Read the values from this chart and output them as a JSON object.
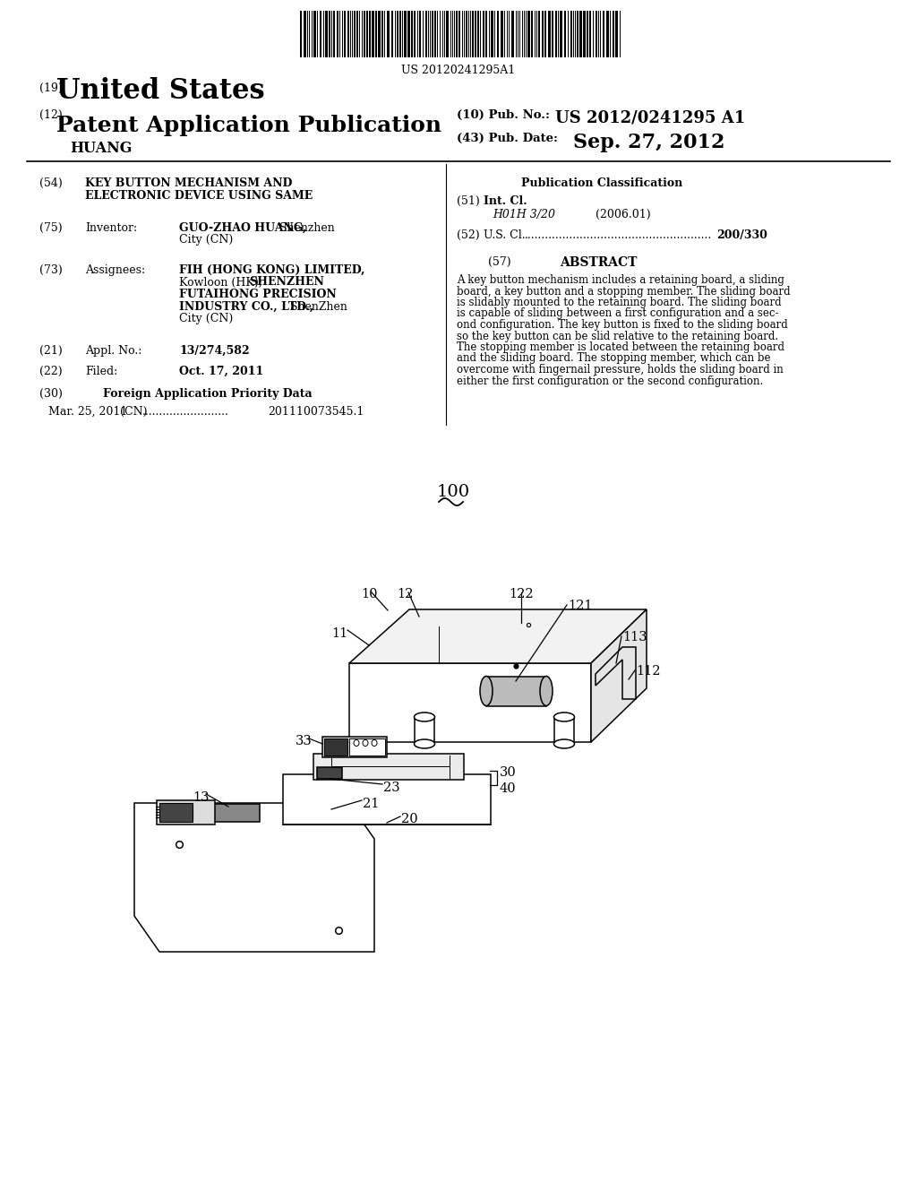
{
  "background_color": "#ffffff",
  "text_color": "#000000",
  "barcode_text": "US 20120241295A1",
  "title_number": "(19)",
  "title_country": "United States",
  "pub_type_number": "(12)",
  "pub_type": "Patent Application Publication",
  "inventor_last": "HUANG",
  "pub_no_label": "(10) Pub. No.:",
  "pub_no": "US 2012/0241295 A1",
  "pub_date_label": "(43) Pub. Date:",
  "pub_date": "Sep. 27, 2012",
  "field54_label": "(54)",
  "field54_line1": "KEY BUTTON MECHANISM AND",
  "field54_line2": "ELECTRONIC DEVICE USING SAME",
  "field75_label": "(75)",
  "field75_title": "Inventor:",
  "field75_bold": "GUO-ZHAO HUANG,",
  "field75_norm": " Shenzhen",
  "field75_line2": "City (CN)",
  "field73_label": "(73)",
  "field73_title": "Assignees:",
  "field73_lines": [
    [
      "FIH (HONG KONG) LIMITED,",
      true
    ],
    [
      "Kowloon (HK); ",
      false
    ],
    [
      "SHENZHEN",
      true
    ],
    [
      "FUTAIHONG PRECISION",
      true
    ],
    [
      "INDUSTRY CO., LTD.,",
      true
    ],
    [
      " ShenZhen",
      false
    ],
    [
      "City (CN)",
      false
    ]
  ],
  "field21_label": "(21)",
  "field21_title": "Appl. No.:",
  "field21_value": "13/274,582",
  "field22_label": "(22)",
  "field22_title": "Filed:",
  "field22_value": "Oct. 17, 2011",
  "field30_label": "(30)",
  "field30_title": "Foreign Application Priority Data",
  "field30_date": "Mar. 25, 2011",
  "field30_country": "(CN)",
  "field30_dots": ".........................",
  "field30_num": "201110073545.1",
  "pub_class_title": "Publication Classification",
  "field51_label": "(51)",
  "field51_title": "Int. Cl.",
  "field51_class": "H01H 3/20",
  "field51_year": "(2006.01)",
  "field52_label": "(52)",
  "field52_title": "U.S. Cl.",
  "field52_dots": "......................................................",
  "field52_value": "200/330",
  "field57_label": "(57)",
  "field57_title": "ABSTRACT",
  "abstract_lines": [
    "A key button mechanism includes a retaining board, a sliding",
    "board, a key button and a stopping member. The sliding board",
    "is slidably mounted to the retaining board. The sliding board",
    "is capable of sliding between a first configuration and a sec-",
    "ond configuration. The key button is fixed to the sliding board",
    "so the key button can be slid relative to the retaining board.",
    "The stopping member is located between the retaining board",
    "and the sliding board. The stopping member, which can be",
    "overcome with fingernail pressure, holds the sliding board in",
    "either the first configuration or the second configuration."
  ],
  "fig_number": "100"
}
